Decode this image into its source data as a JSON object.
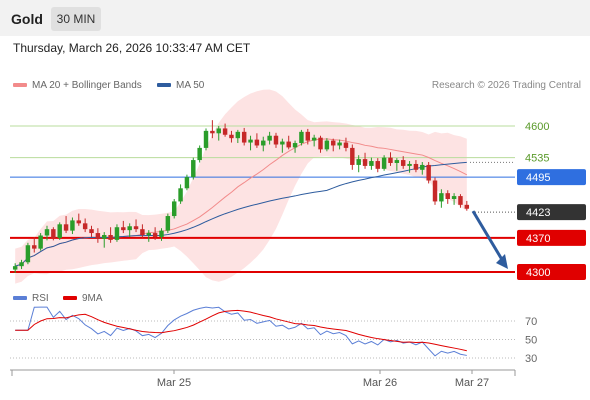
{
  "header": {
    "title": "Gold",
    "timeframe": "30 MIN"
  },
  "timestamp": "Thursday, March 26, 2026 10:33:47 AM CET",
  "legend": [
    {
      "label": "MA 20 + Bollinger Bands",
      "color": "#f28b8b"
    },
    {
      "label": "MA 50",
      "color": "#2e5c9e"
    }
  ],
  "credit": "Research © 2026 Trading Central",
  "price_levels": [
    {
      "label": "4600",
      "value": 4600,
      "style": "text-green",
      "color": "#a8d08d"
    },
    {
      "label": "4535",
      "value": 4535,
      "style": "text-green",
      "color": "#a8d08d"
    },
    {
      "label": "4495",
      "value": 4495,
      "style": "badge",
      "color": "#2f6fe0"
    },
    {
      "label": "4423",
      "value": 4423,
      "style": "badge",
      "color": "#333333"
    },
    {
      "label": "4370",
      "value": 4370,
      "style": "badge",
      "color": "#e00000"
    },
    {
      "label": "4300",
      "value": 4300,
      "style": "badge",
      "color": "#e00000"
    }
  ],
  "rsi_legend": [
    {
      "label": "RSI",
      "color": "#5b7fd6"
    },
    {
      "label": "9MA",
      "color": "#e00000"
    }
  ],
  "rsi_levels": [
    "70",
    "50",
    "30"
  ],
  "x_labels": [
    "Mar 25",
    "Mar 26",
    "Mar 27"
  ],
  "chart_data": {
    "type": "candlestick",
    "ylim": [
      4280,
      4660
    ],
    "candles": [
      [
        4305,
        4318,
        4298,
        4312
      ],
      [
        4312,
        4325,
        4306,
        4320
      ],
      [
        4320,
        4360,
        4316,
        4355
      ],
      [
        4355,
        4372,
        4340,
        4348
      ],
      [
        4348,
        4380,
        4344,
        4375
      ],
      [
        4375,
        4395,
        4365,
        4388
      ],
      [
        4388,
        4392,
        4365,
        4370
      ],
      [
        4370,
        4402,
        4366,
        4398
      ],
      [
        4398,
        4415,
        4380,
        4385
      ],
      [
        4385,
        4412,
        4378,
        4406
      ],
      [
        4406,
        4420,
        4395,
        4400
      ],
      [
        4400,
        4410,
        4382,
        4388
      ],
      [
        4388,
        4395,
        4372,
        4380
      ],
      [
        4380,
        4390,
        4360,
        4368
      ],
      [
        4368,
        4382,
        4350,
        4376
      ],
      [
        4376,
        4392,
        4360,
        4366
      ],
      [
        4366,
        4398,
        4362,
        4392
      ],
      [
        4392,
        4405,
        4380,
        4386
      ],
      [
        4386,
        4400,
        4372,
        4394
      ],
      [
        4394,
        4408,
        4382,
        4388
      ],
      [
        4388,
        4398,
        4370,
        4376
      ],
      [
        4376,
        4386,
        4362,
        4380
      ],
      [
        4380,
        4392,
        4366,
        4372
      ],
      [
        4372,
        4390,
        4364,
        4385
      ],
      [
        4385,
        4420,
        4380,
        4415
      ],
      [
        4415,
        4450,
        4410,
        4445
      ],
      [
        4445,
        4480,
        4440,
        4472
      ],
      [
        4472,
        4500,
        4468,
        4495
      ],
      [
        4495,
        4535,
        4490,
        4530
      ],
      [
        4530,
        4560,
        4525,
        4555
      ],
      [
        4555,
        4595,
        4550,
        4590
      ],
      [
        4590,
        4612,
        4575,
        4585
      ],
      [
        4585,
        4600,
        4570,
        4595
      ],
      [
        4595,
        4605,
        4578,
        4582
      ],
      [
        4582,
        4590,
        4566,
        4575
      ],
      [
        4575,
        4592,
        4565,
        4588
      ],
      [
        4588,
        4596,
        4560,
        4566
      ],
      [
        4566,
        4580,
        4550,
        4572
      ],
      [
        4572,
        4585,
        4555,
        4560
      ],
      [
        4560,
        4578,
        4548,
        4570
      ],
      [
        4570,
        4588,
        4562,
        4580
      ],
      [
        4580,
        4586,
        4555,
        4562
      ],
      [
        4562,
        4574,
        4545,
        4568
      ],
      [
        4568,
        4580,
        4552,
        4556
      ],
      [
        4556,
        4570,
        4545,
        4565
      ],
      [
        4565,
        4592,
        4560,
        4588
      ],
      [
        4588,
        4594,
        4562,
        4570
      ],
      [
        4570,
        4582,
        4558,
        4576
      ],
      [
        4576,
        4580,
        4545,
        4552
      ],
      [
        4552,
        4575,
        4548,
        4570
      ],
      [
        4570,
        4574,
        4548,
        4560
      ],
      [
        4560,
        4572,
        4552,
        4566
      ],
      [
        4566,
        4576,
        4548,
        4555
      ],
      [
        4555,
        4562,
        4510,
        4520
      ],
      [
        4520,
        4540,
        4505,
        4532
      ],
      [
        4532,
        4545,
        4512,
        4518
      ],
      [
        4518,
        4535,
        4510,
        4528
      ],
      [
        4528,
        4534,
        4505,
        4512
      ],
      [
        4512,
        4540,
        4508,
        4535
      ],
      [
        4535,
        4546,
        4518,
        4524
      ],
      [
        4524,
        4534,
        4508,
        4530
      ],
      [
        4530,
        4538,
        4512,
        4518
      ],
      [
        4518,
        4528,
        4504,
        4522
      ],
      [
        4522,
        4530,
        4505,
        4510
      ],
      [
        4510,
        4526,
        4500,
        4520
      ],
      [
        4520,
        4526,
        4482,
        4488
      ],
      [
        4488,
        4494,
        4438,
        4445
      ],
      [
        4445,
        4470,
        4432,
        4462
      ],
      [
        4462,
        4468,
        4440,
        4450
      ],
      [
        4450,
        4462,
        4438,
        4456
      ],
      [
        4456,
        4460,
        4432,
        4438
      ],
      [
        4438,
        4446,
        4426,
        4430
      ]
    ],
    "analyst_target": 4300
  }
}
